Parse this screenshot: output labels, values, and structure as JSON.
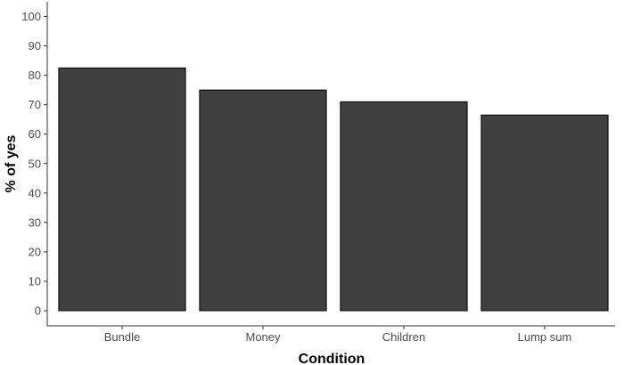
{
  "chart_data": {
    "type": "bar",
    "categories": [
      "Bundle",
      "Money",
      "Children",
      "Lump sum"
    ],
    "values": [
      82.5,
      75,
      71,
      66.5
    ],
    "xlabel": "Condition",
    "ylabel": "% of yes",
    "ylim": [
      0,
      100
    ],
    "yticks": [
      0,
      10,
      20,
      30,
      40,
      50,
      60,
      70,
      80,
      90,
      100
    ],
    "grid": false,
    "bar_color": "#404040",
    "bar_edge_color": "#000000"
  }
}
